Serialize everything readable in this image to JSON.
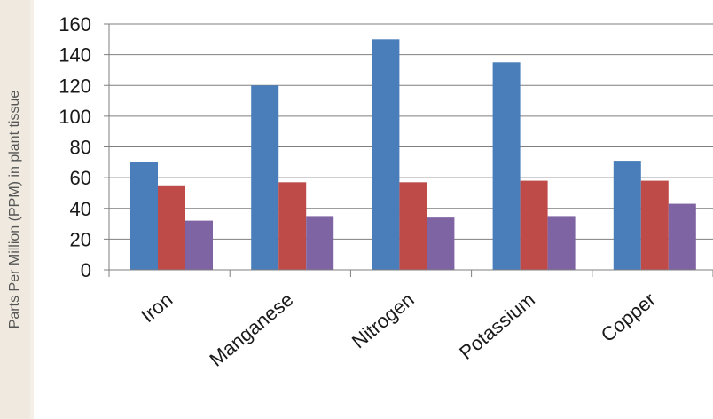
{
  "chart_data": {
    "type": "bar",
    "title": "",
    "xlabel": "",
    "ylabel": "Parts Per Million (PPM) in plant tissue",
    "categories": [
      "Iron",
      "Manganese",
      "Nitrogen",
      "Potassium",
      "Copper"
    ],
    "series": [
      {
        "values": [
          70,
          120,
          150,
          135,
          71
        ],
        "color": "#4a7ebb"
      },
      {
        "values": [
          55,
          57,
          57,
          58,
          58
        ],
        "color": "#be4b48"
      },
      {
        "values": [
          32,
          35,
          34,
          35,
          43
        ],
        "color": "#7f64a3"
      }
    ],
    "ylim": [
      0,
      160
    ],
    "yticks": [
      0,
      20,
      40,
      60,
      80,
      100,
      120,
      140,
      160
    ],
    "grid": true,
    "legend": "none",
    "colors": {
      "gridline": "#7f7f7f",
      "axis": "#7f7f7f"
    }
  }
}
